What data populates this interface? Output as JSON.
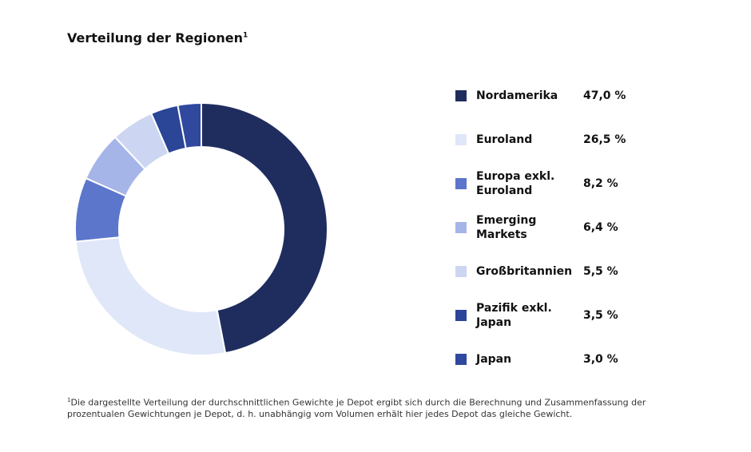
{
  "chart_data": {
    "type": "donut",
    "title": "Verteilung der Regionen",
    "title_note": "1",
    "categories": [
      "Nordamerika",
      "Euroland",
      "Europa exkl. Euroland",
      "Emerging Markets",
      "Großbritannien",
      "Pazifik exkl. Japan",
      "Japan"
    ],
    "values": [
      47.0,
      26.5,
      8.2,
      6.4,
      5.5,
      3.5,
      3.0
    ],
    "value_labels": [
      "47,0 %",
      "26,5 %",
      "8,2 %",
      "6,4 %",
      "5,5 %",
      "3,5 %",
      "3,0 %"
    ],
    "colors": [
      "#1f2d5e",
      "#dfe7f8",
      "#5c76cc",
      "#a6b5e8",
      "#ccd6f2",
      "#2b4597",
      "#30499f"
    ],
    "footnote_mark": "1",
    "footnote": "Die dargestellte Verteilung der durchschnittlichen Gewichte je Depot ergibt sich durch die Berechnung und Zusammenfassung der prozentualen Gewichtungen je Depot, d. h. unabhängig vom Volumen erhält hier jedes Depot das gleiche Gewicht."
  }
}
